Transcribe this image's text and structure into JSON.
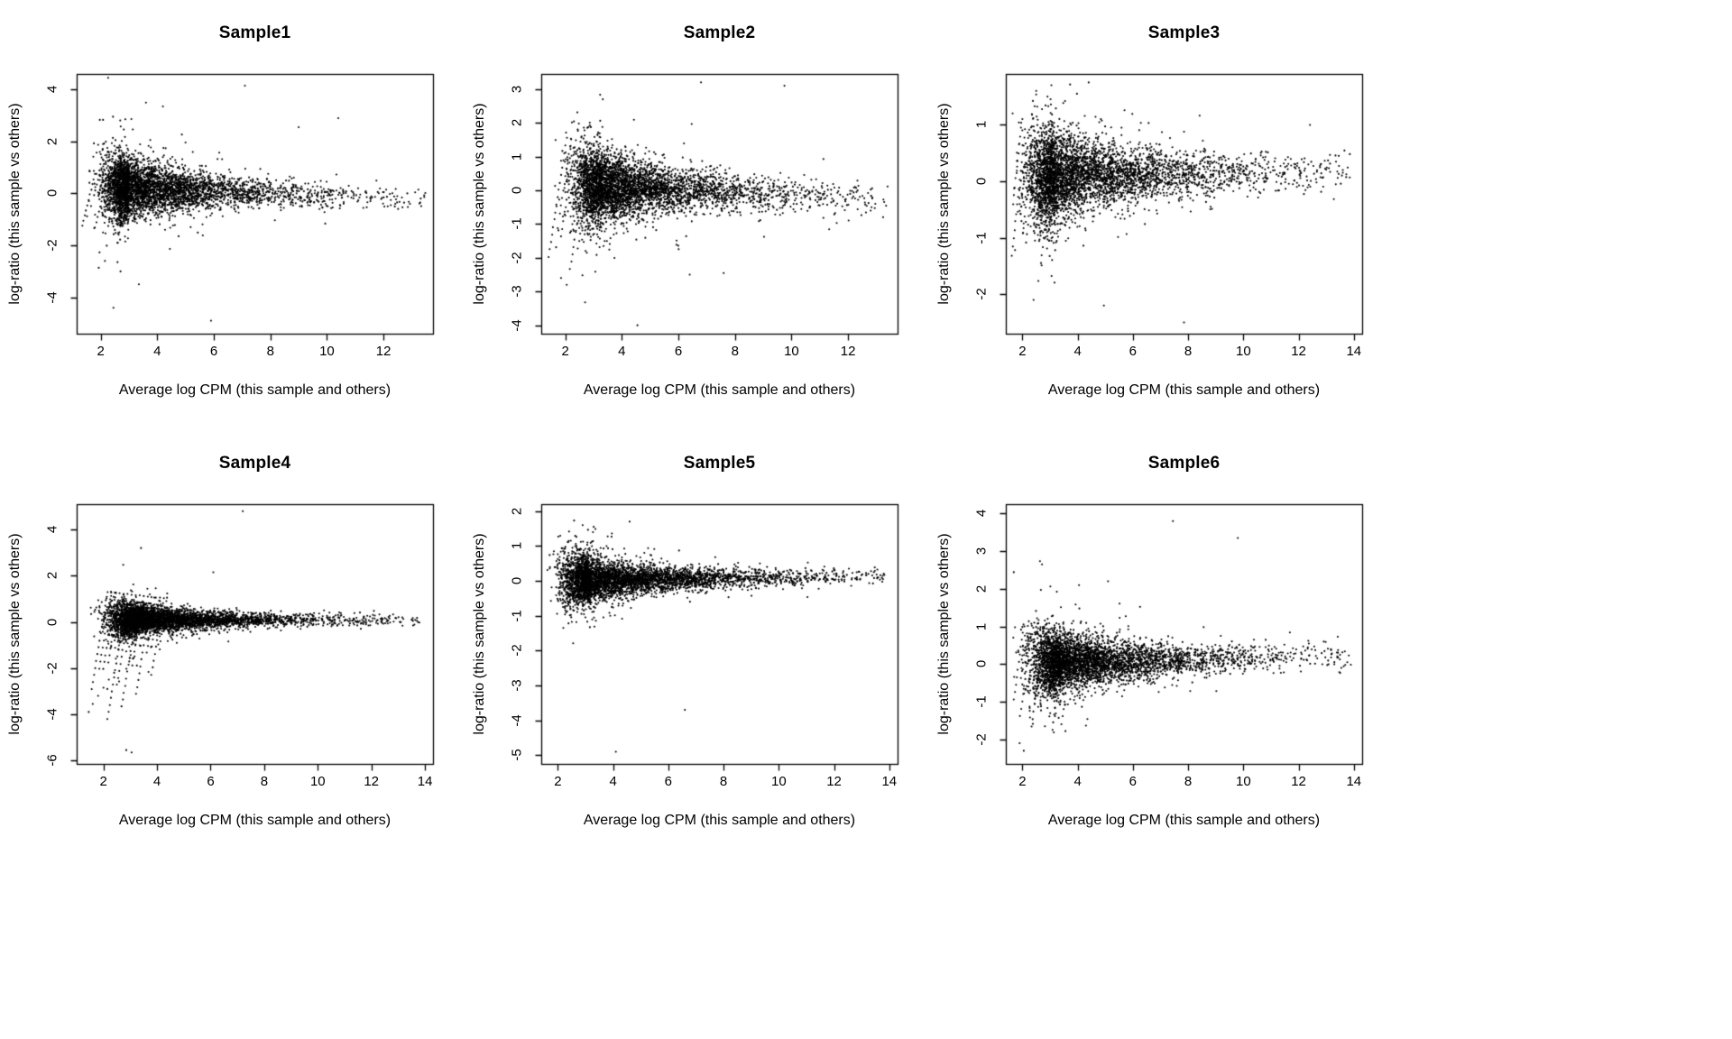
{
  "figure": {
    "background": "#ffffff",
    "axis_color": "#000000",
    "point_color": "#000000"
  },
  "chart_data": [
    {
      "type": "scatter",
      "title": "Sample1",
      "xlabel": "Average log CPM (this sample and others)",
      "ylabel": "log-ratio (this sample vs others)",
      "xlim": [
        1.15,
        13.75
      ],
      "ylim": [
        -5.4,
        4.6
      ],
      "xticks": [
        2,
        4,
        6,
        8,
        10,
        12
      ],
      "yticks": [
        -4,
        -2,
        0,
        2,
        4
      ],
      "grid": false,
      "legend": "none",
      "seed": 11,
      "cloud": {
        "n": 4200,
        "x_peak": 3.0,
        "left_sd": 0.45,
        "left_prob": 0.32,
        "right_scale": 2.2,
        "x_min": 1.45,
        "x_max": 13.5,
        "y_center": 0.25,
        "y_slope": -0.045,
        "sd_min": 0.22,
        "sd0": 0.72,
        "decay": 2.4,
        "tail_prob": 0.05,
        "tail_mult": 2.3
      },
      "streaks": {
        "count": 9,
        "x0": 1.8,
        "x_step": 0.15,
        "y_top": 0.75,
        "y_top_step": -0.02,
        "dx": -0.045,
        "dy": -0.2,
        "pts_min": 4,
        "pts_max": 11
      },
      "outliers": [
        [
          7.1,
          4.15
        ],
        [
          3.6,
          3.5
        ],
        [
          4.2,
          3.35
        ],
        [
          10.4,
          2.9
        ],
        [
          9.0,
          2.55
        ],
        [
          5.9,
          -4.9
        ],
        [
          2.45,
          -4.4
        ],
        [
          3.35,
          -3.5
        ],
        [
          2.15,
          -2.6
        ],
        [
          2.7,
          -3.0
        ],
        [
          12.4,
          -0.5
        ],
        [
          13.3,
          -0.35
        ]
      ]
    },
    {
      "type": "scatter",
      "title": "Sample2",
      "xlabel": "Average log CPM (this sample and others)",
      "ylabel": "log-ratio (this sample vs others)",
      "xlim": [
        1.15,
        13.75
      ],
      "ylim": [
        -4.25,
        3.45
      ],
      "xticks": [
        2,
        4,
        6,
        8,
        10,
        12
      ],
      "yticks": [
        -4,
        -3,
        -2,
        -1,
        0,
        1,
        2,
        3
      ],
      "grid": false,
      "legend": "none",
      "seed": 22,
      "cloud": {
        "n": 4200,
        "x_peak": 3.3,
        "left_sd": 0.5,
        "left_prob": 0.3,
        "right_scale": 2.3,
        "x_min": 1.5,
        "x_max": 13.4,
        "y_center": 0.15,
        "y_slope": -0.035,
        "sd_min": 0.24,
        "sd0": 0.55,
        "decay": 2.6,
        "tail_prob": 0.05,
        "tail_mult": 2.2
      },
      "streaks": {
        "count": 16,
        "x0": 2.05,
        "x_step": 0.16,
        "y_top": 1.55,
        "y_top_step": -0.03,
        "dx": -0.04,
        "dy": -0.22,
        "pts_min": 6,
        "pts_max": 20
      },
      "outliers": [
        [
          6.8,
          3.2
        ],
        [
          9.75,
          3.1
        ],
        [
          4.55,
          -4.0
        ],
        [
          2.05,
          -2.8
        ],
        [
          1.85,
          -2.6
        ],
        [
          6.4,
          -2.5
        ],
        [
          7.6,
          -2.45
        ],
        [
          12.8,
          -0.6
        ]
      ]
    },
    {
      "type": "scatter",
      "title": "Sample3",
      "xlabel": "Average log CPM (this sample and others)",
      "ylabel": "log-ratio (this sample vs others)",
      "xlim": [
        1.4,
        14.3
      ],
      "ylim": [
        -2.7,
        1.9
      ],
      "xticks": [
        2,
        4,
        6,
        8,
        10,
        12,
        14
      ],
      "yticks": [
        -2,
        -1,
        0,
        1
      ],
      "grid": false,
      "legend": "none",
      "seed": 33,
      "cloud": {
        "n": 4200,
        "x_peak": 3.2,
        "left_sd": 0.5,
        "left_prob": 0.3,
        "right_scale": 2.6,
        "x_min": 1.6,
        "x_max": 13.9,
        "y_center": 0.08,
        "y_slope": 0.008,
        "sd_min": 0.17,
        "sd0": 0.42,
        "decay": 2.6,
        "tail_prob": 0.05,
        "tail_mult": 2.2
      },
      "streaks": {
        "count": 14,
        "x0": 1.95,
        "x_step": 0.15,
        "y_top": 0.95,
        "y_top_step": -0.02,
        "dx": -0.032,
        "dy": -0.15,
        "pts_min": 5,
        "pts_max": 16
      },
      "outliers": [
        [
          7.85,
          -2.5
        ],
        [
          4.95,
          -2.2
        ],
        [
          3.05,
          1.7
        ],
        [
          4.4,
          1.75
        ],
        [
          2.5,
          1.6
        ],
        [
          13.6,
          0.2
        ]
      ]
    },
    {
      "type": "scatter",
      "title": "Sample4",
      "xlabel": "Average log CPM (this sample and others)",
      "ylabel": "log-ratio (this sample vs others)",
      "xlim": [
        1.0,
        14.3
      ],
      "ylim": [
        -6.15,
        5.1
      ],
      "xticks": [
        2,
        4,
        6,
        8,
        10,
        12,
        14
      ],
      "yticks": [
        -6,
        -4,
        -2,
        0,
        2,
        4
      ],
      "grid": false,
      "legend": "none",
      "seed": 44,
      "cloud": {
        "n": 4200,
        "x_peak": 3.3,
        "left_sd": 0.55,
        "left_prob": 0.3,
        "right_scale": 2.4,
        "x_min": 1.2,
        "x_max": 13.8,
        "y_center": 0.1,
        "y_slope": -0.004,
        "sd_min": 0.13,
        "sd0": 0.55,
        "decay": 2.2,
        "tail_prob": 0.04,
        "tail_mult": 2.5
      },
      "streaks": {
        "count": 15,
        "x0": 2.15,
        "x_step": 0.15,
        "y_top": 1.3,
        "y_top_step": -0.02,
        "dx": -0.042,
        "dy": -0.3,
        "pts_min": 6,
        "pts_max": 20
      },
      "outliers": [
        [
          7.2,
          4.8
        ],
        [
          3.4,
          3.2
        ],
        [
          6.1,
          2.15
        ],
        [
          3.05,
          -5.65
        ],
        [
          2.85,
          -5.55
        ],
        [
          2.4,
          -2.2
        ],
        [
          2.2,
          -2.5
        ],
        [
          2.0,
          -2.85
        ],
        [
          1.8,
          -3.2
        ],
        [
          1.6,
          -3.55
        ],
        [
          1.45,
          -3.9
        ],
        [
          13.5,
          0.1
        ]
      ]
    },
    {
      "type": "scatter",
      "title": "Sample5",
      "xlabel": "Average log CPM (this sample and others)",
      "ylabel": "log-ratio (this sample vs others)",
      "xlim": [
        1.4,
        14.3
      ],
      "ylim": [
        -5.25,
        2.2
      ],
      "xticks": [
        2,
        4,
        6,
        8,
        10,
        12,
        14
      ],
      "yticks": [
        -5,
        -4,
        -3,
        -2,
        -1,
        0,
        1,
        2
      ],
      "grid": false,
      "legend": "none",
      "seed": 55,
      "cloud": {
        "n": 4400,
        "x_peak": 3.2,
        "left_sd": 0.5,
        "left_prob": 0.3,
        "right_scale": 2.7,
        "x_min": 1.6,
        "x_max": 13.9,
        "y_center": 0.02,
        "y_slope": 0.008,
        "sd_min": 0.11,
        "sd0": 0.42,
        "decay": 2.4,
        "tail_prob": 0.05,
        "tail_mult": 2.4
      },
      "streaks": {
        "count": 8,
        "x0": 2.1,
        "x_step": 0.14,
        "y_top": 0.85,
        "y_top_step": -0.02,
        "dx": -0.03,
        "dy": -0.17,
        "pts_min": 4,
        "pts_max": 10
      },
      "outliers": [
        [
          6.6,
          -3.7
        ],
        [
          4.1,
          -4.9
        ],
        [
          2.9,
          1.6
        ],
        [
          4.6,
          1.7
        ],
        [
          3.3,
          1.55
        ],
        [
          2.2,
          -1.35
        ],
        [
          13.6,
          0.1
        ]
      ]
    },
    {
      "type": "scatter",
      "title": "Sample6",
      "xlabel": "Average log CPM (this sample and others)",
      "ylabel": "log-ratio (this sample vs others)",
      "xlim": [
        1.4,
        14.3
      ],
      "ylim": [
        -2.65,
        4.25
      ],
      "xticks": [
        2,
        4,
        6,
        8,
        10,
        12,
        14
      ],
      "yticks": [
        -2,
        -1,
        0,
        1,
        2,
        3,
        4
      ],
      "grid": false,
      "legend": "none",
      "seed": 66,
      "cloud": {
        "n": 4200,
        "x_peak": 3.4,
        "left_sd": 0.55,
        "left_prob": 0.3,
        "right_scale": 2.5,
        "x_min": 1.6,
        "x_max": 13.9,
        "y_center": 0.02,
        "y_slope": 0.015,
        "sd_min": 0.17,
        "sd0": 0.5,
        "decay": 2.4,
        "tail_prob": 0.05,
        "tail_mult": 2.3
      },
      "streaks": {
        "count": 13,
        "x0": 2.05,
        "x_step": 0.15,
        "y_top": 1.05,
        "y_top_step": -0.02,
        "dx": -0.036,
        "dy": -0.2,
        "pts_min": 5,
        "pts_max": 15
      },
      "outliers": [
        [
          7.45,
          3.8
        ],
        [
          9.8,
          3.35
        ],
        [
          5.1,
          2.2
        ],
        [
          4.05,
          2.1
        ],
        [
          2.05,
          -2.3
        ],
        [
          1.9,
          -2.1
        ],
        [
          13.5,
          0.25
        ]
      ]
    }
  ]
}
